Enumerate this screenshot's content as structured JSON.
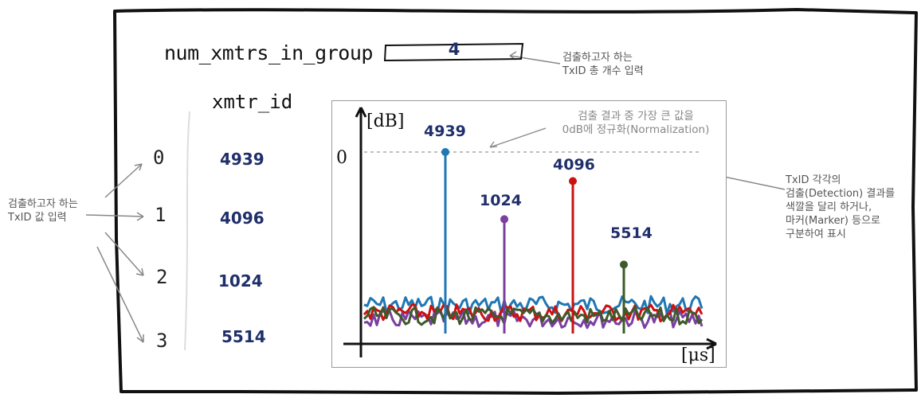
{
  "param": {
    "label": "num_xmtrs_in_group",
    "value": "4",
    "note_line1": "검출하고자 하는",
    "note_line2": "TxID 총 개수 입력"
  },
  "xmtr": {
    "header": "xmtr_id",
    "indices": [
      "0",
      "1",
      "2",
      "3"
    ],
    "ids": [
      "4939",
      "4096",
      "1024",
      "5514"
    ]
  },
  "left_note": {
    "line1": "검출하고자 하는",
    "line2": "TxID 값 입력"
  },
  "plot": {
    "y_unit": "[dB]",
    "x_unit": "[μs]",
    "zero_label": "0",
    "norm_note_line1": "검출 결과 중 가장 큰 값을",
    "norm_note_line2": "0dB에 정규화(Normalization)"
  },
  "right_note": {
    "line1": "TxID 각각의",
    "line2": "검출(Detection) 결과를",
    "line3": "색깔을 달리 하거나,",
    "line4": "마커(Marker) 등으로",
    "line5": "구분하여 표시"
  },
  "chart_data": {
    "type": "stem",
    "peaks": [
      {
        "label": "4939",
        "level_frac": 1.0,
        "color": "#1f77b4"
      },
      {
        "label": "1024",
        "level_frac": 0.63,
        "color": "#7a3fa0"
      },
      {
        "label": "4096",
        "level_frac": 0.84,
        "color": "#cc1111"
      },
      {
        "label": "5514",
        "level_frac": 0.38,
        "color": "#3e5a2a"
      }
    ],
    "noise_colors": [
      "#1f77b4",
      "#7a3fa0",
      "#cc1111",
      "#3e5a2a"
    ]
  }
}
